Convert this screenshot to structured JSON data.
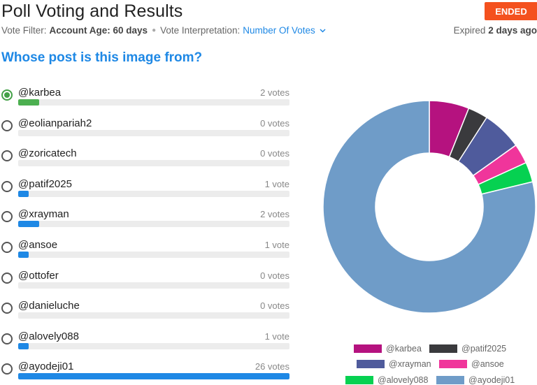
{
  "header": {
    "title": "Poll Voting and Results",
    "status": "ENDED",
    "vote_filter_label": "Vote Filter:",
    "vote_filter_value": "Account Age: 60 days",
    "interp_label": "Vote Interpretation:",
    "interp_value": "Number Of Votes",
    "expired_prefix": "Expired",
    "expired_value": "2 days ago"
  },
  "question": "Whose post is this image from?",
  "options": [
    {
      "label": "@karbea",
      "votes_text": "2 votes",
      "votes": 2,
      "selected": true
    },
    {
      "label": "@eolianpariah2",
      "votes_text": "0 votes",
      "votes": 0,
      "selected": false
    },
    {
      "label": "@zoricatech",
      "votes_text": "0 votes",
      "votes": 0,
      "selected": false
    },
    {
      "label": "@patif2025",
      "votes_text": "1 vote",
      "votes": 1,
      "selected": false
    },
    {
      "label": "@xrayman",
      "votes_text": "2 votes",
      "votes": 2,
      "selected": false
    },
    {
      "label": "@ansoe",
      "votes_text": "1 vote",
      "votes": 1,
      "selected": false
    },
    {
      "label": "@ottofer",
      "votes_text": "0 votes",
      "votes": 0,
      "selected": false
    },
    {
      "label": "@danieluche",
      "votes_text": "0 votes",
      "votes": 0,
      "selected": false
    },
    {
      "label": "@alovely088",
      "votes_text": "1 vote",
      "votes": 1,
      "selected": false
    },
    {
      "label": "@ayodeji01",
      "votes_text": "26 votes",
      "votes": 26,
      "selected": false
    }
  ],
  "colors": {
    "accent": "#1e88e5",
    "selected": "#4caf50",
    "badge": "#f4511e"
  },
  "chart_data": {
    "type": "pie",
    "title": "",
    "slices": [
      {
        "name": "@karbea",
        "value": 2,
        "color": "#b5127f"
      },
      {
        "name": "@patif2025",
        "value": 1,
        "color": "#3a3a3d"
      },
      {
        "name": "@xrayman",
        "value": 2,
        "color": "#4f5b9c"
      },
      {
        "name": "@ansoe",
        "value": 1,
        "color": "#f0359b"
      },
      {
        "name": "@alovely088",
        "value": 1,
        "color": "#06d151"
      },
      {
        "name": "@ayodeji01",
        "value": 26,
        "color": "#6f9cc8"
      }
    ],
    "legend_position": "bottom"
  }
}
